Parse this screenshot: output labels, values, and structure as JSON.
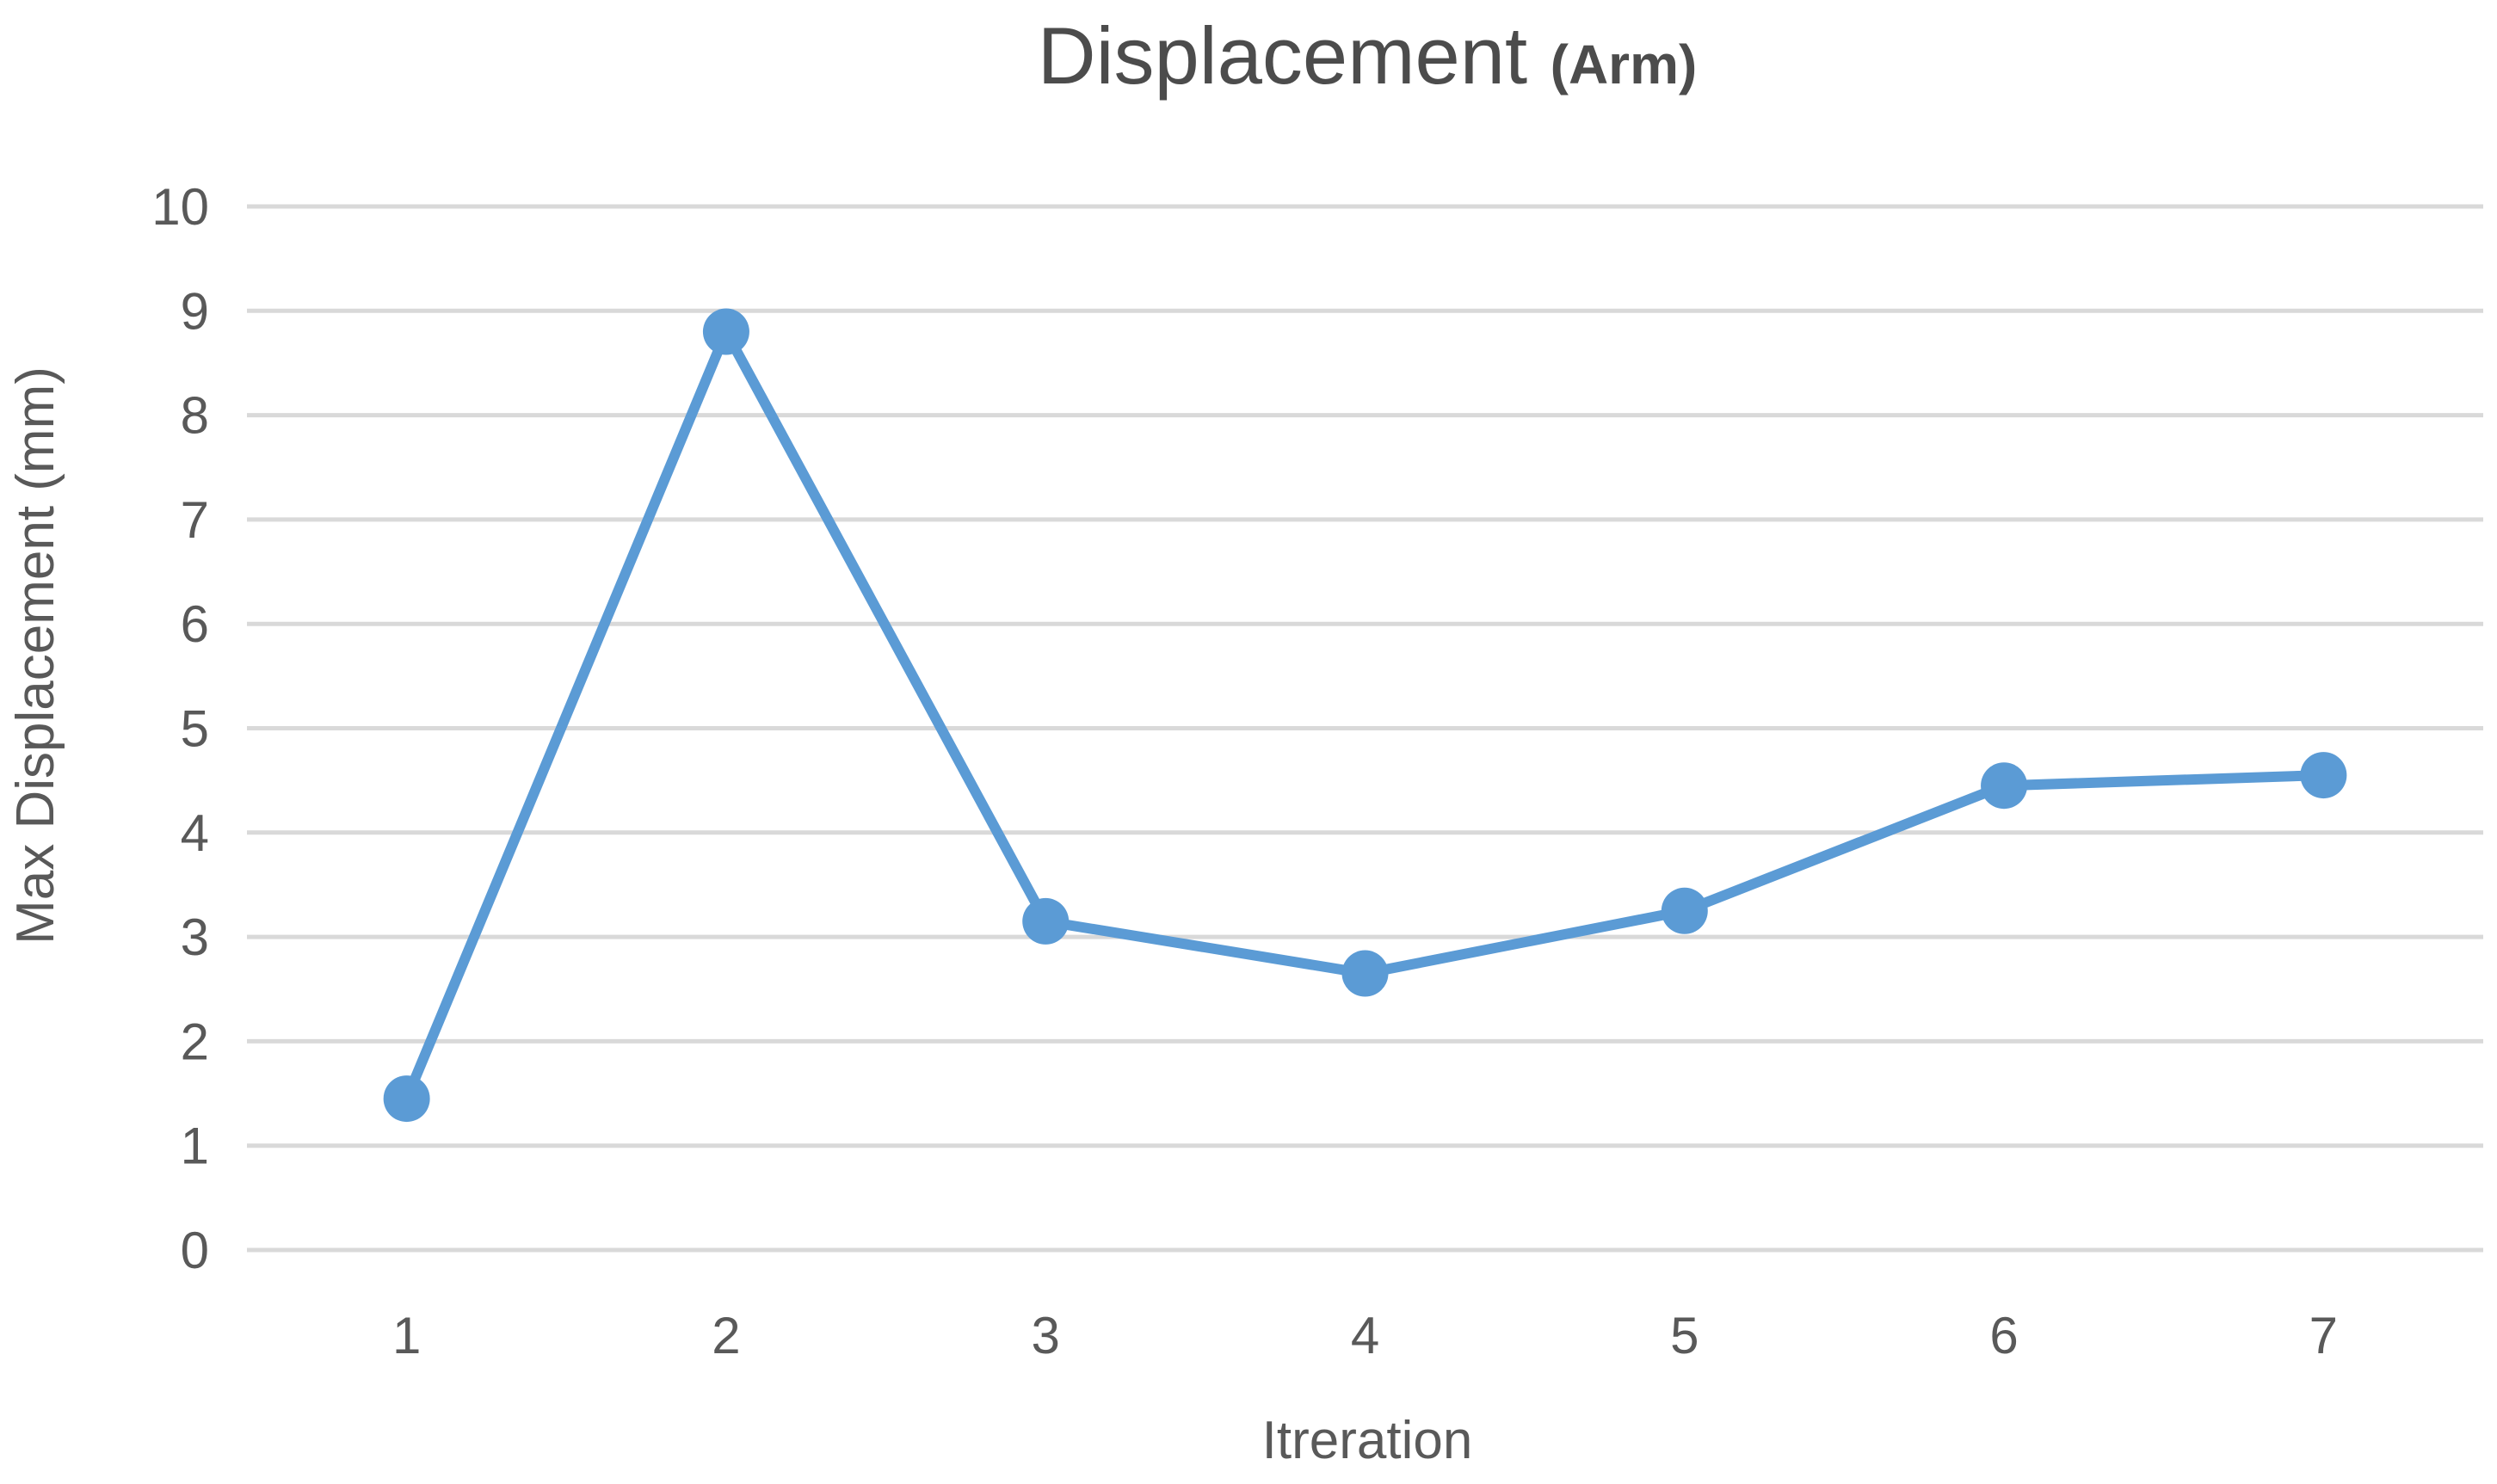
{
  "chart_data": {
    "type": "line",
    "title": "Displacement",
    "title_suffix": "(Arm)",
    "xlabel": "Itreration",
    "ylabel": "Max Displacement (mm)",
    "categories": [
      "1",
      "2",
      "3",
      "4",
      "5",
      "6",
      "7"
    ],
    "values": [
      1.45,
      8.8,
      3.15,
      2.65,
      3.25,
      4.45,
      4.55
    ],
    "ylim": [
      0,
      10
    ],
    "yticks": [
      0,
      1,
      2,
      3,
      4,
      5,
      6,
      7,
      8,
      9,
      10
    ],
    "grid": true,
    "legend": false,
    "marker": "circle",
    "colors": {
      "line": "#5B9BD5",
      "gridline": "#D9D9D9",
      "axis_text": "#595959",
      "title_text": "#4C4C4C",
      "background": "#FFFFFF"
    }
  }
}
